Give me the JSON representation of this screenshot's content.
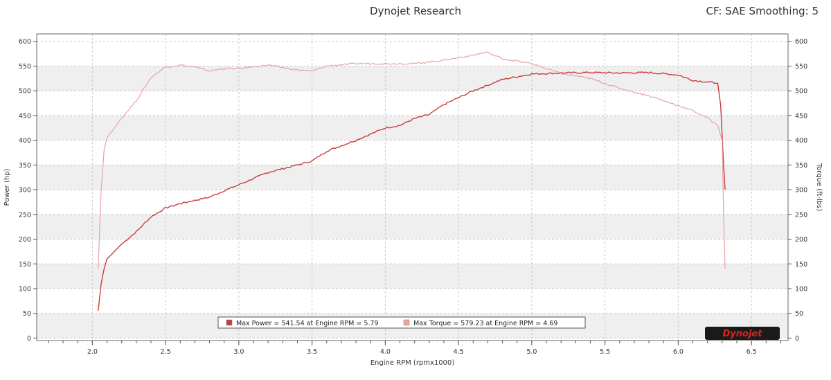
{
  "header": {
    "title": "Dynojet Research",
    "info": "CF: SAE Smoothing: 5"
  },
  "logo_text": "Dynojet",
  "colors": {
    "power": "#cc3b3b",
    "torque": "#e8a3a3",
    "band": "#efefef",
    "plot_bg": "#ffffff"
  },
  "chart_data": {
    "type": "line",
    "xlabel": "Engine RPM (rpmx1000)",
    "ylabel_left": "Power (hp)",
    "ylabel_right": "Torque (ft-lbs)",
    "xlim": [
      1.62,
      6.75
    ],
    "ylim": [
      -5,
      615
    ],
    "x_ticks": [
      "2.0",
      "2.5",
      "3.0",
      "3.5",
      "4.0",
      "4.5",
      "5.0",
      "5.5",
      "6.0",
      "6.5"
    ],
    "y_ticks": [
      "0",
      "50",
      "100",
      "150",
      "200",
      "250",
      "300",
      "350",
      "400",
      "450",
      "500",
      "550",
      "600"
    ],
    "grid": true,
    "legend_position": "bottom-center",
    "series": [
      {
        "name": "Power",
        "legend": "Max Power = 541.54 at Engine RPM = 5.79",
        "x": [
          2.04,
          2.06,
          2.08,
          2.1,
          2.15,
          2.2,
          2.3,
          2.4,
          2.5,
          2.6,
          2.8,
          2.9,
          3.0,
          3.2,
          3.4,
          3.5,
          3.6,
          3.8,
          4.0,
          4.1,
          4.2,
          4.3,
          4.4,
          4.6,
          4.8,
          5.0,
          5.2,
          5.4,
          5.6,
          5.8,
          6.0,
          6.1,
          6.2,
          6.27,
          6.29,
          6.31,
          6.32
        ],
        "y": [
          55,
          110,
          140,
          160,
          175,
          190,
          215,
          245,
          263,
          272,
          285,
          298,
          310,
          335,
          350,
          358,
          378,
          400,
          425,
          430,
          444,
          452,
          472,
          500,
          523,
          534,
          536,
          537,
          536,
          537,
          532,
          521,
          518,
          515,
          470,
          350,
          300
        ]
      },
      {
        "name": "Torque",
        "legend": "Max Torque = 579.23 at Engine RPM = 4.69",
        "x": [
          2.04,
          2.06,
          2.08,
          2.1,
          2.15,
          2.2,
          2.3,
          2.4,
          2.5,
          2.6,
          2.7,
          2.8,
          2.9,
          3.0,
          3.2,
          3.4,
          3.5,
          3.6,
          3.8,
          4.0,
          4.2,
          4.4,
          4.6,
          4.69,
          4.8,
          5.0,
          5.2,
          5.4,
          5.6,
          5.8,
          6.0,
          6.1,
          6.2,
          6.27,
          6.3,
          6.31,
          6.32
        ],
        "y": [
          140,
          300,
          380,
          405,
          425,
          445,
          480,
          527,
          548,
          552,
          548,
          540,
          545,
          545,
          552,
          542,
          540,
          550,
          555,
          555,
          555,
          562,
          572,
          578,
          565,
          555,
          535,
          525,
          505,
          490,
          470,
          460,
          445,
          430,
          400,
          250,
          140
        ]
      }
    ]
  }
}
